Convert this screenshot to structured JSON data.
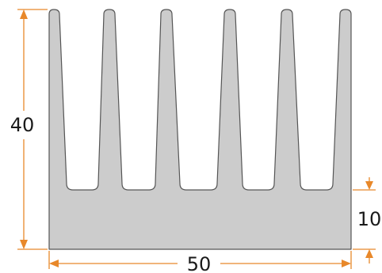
{
  "drawing": {
    "body_color": "#cccccc",
    "outline_color": "#555555",
    "dimension_color": "#e8882a",
    "fin_count": 6,
    "dimensions": {
      "height": "40",
      "width": "50",
      "base_thickness": "10"
    }
  }
}
